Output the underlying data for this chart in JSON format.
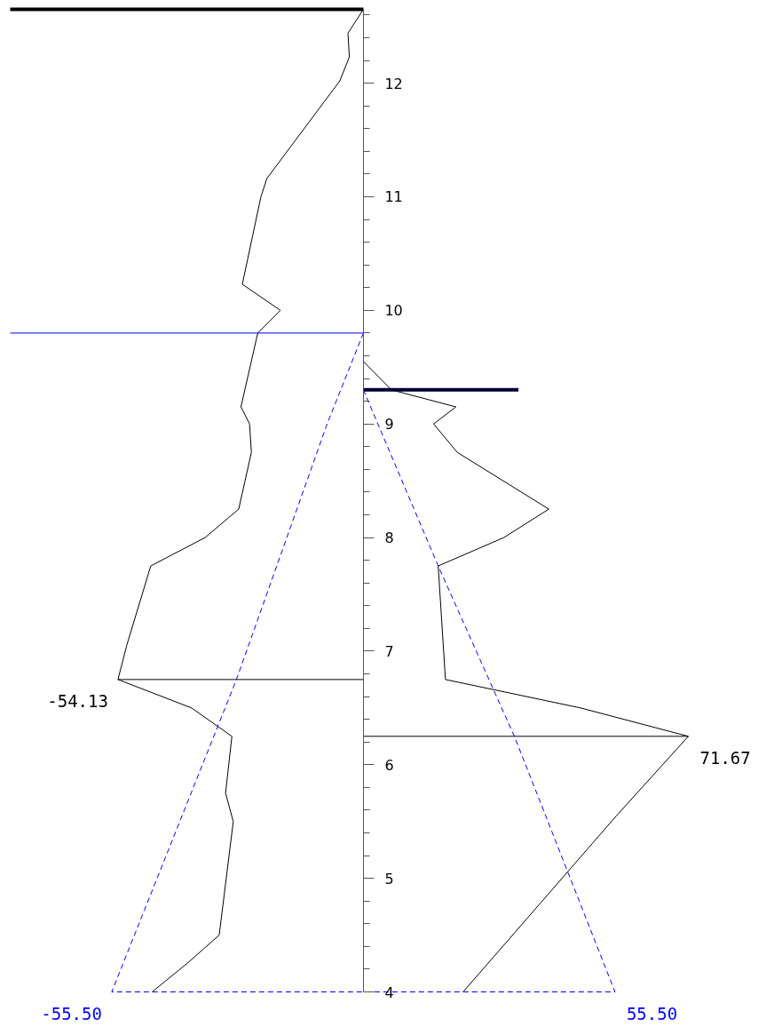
{
  "chart_data": {
    "type": "line",
    "orientation": "horizontal",
    "tick_labels": "y",
    "ylim": [
      4,
      12.65
    ],
    "yticks": [
      4,
      {
        "value": 4.2,
        "label": null
      },
      {
        "value": 4.4,
        "label": null
      },
      {
        "value": 4.6,
        "label": null
      },
      {
        "value": 4.8,
        "label": null
      },
      5,
      {
        "value": 5.2,
        "label": null
      },
      {
        "value": 5.4,
        "label": null
      },
      {
        "value": 5.6,
        "label": null
      },
      {
        "value": 5.8,
        "label": null
      },
      6,
      {
        "value": 6.2,
        "label": null
      },
      {
        "value": 6.4,
        "label": null
      },
      {
        "value": 6.6,
        "label": null
      },
      {
        "value": 6.8,
        "label": null
      },
      7,
      {
        "value": 7.2,
        "label": null
      },
      {
        "value": 7.4,
        "label": null
      },
      {
        "value": 7.6,
        "label": null
      },
      {
        "value": 7.8,
        "label": null
      },
      8,
      {
        "value": 8.2,
        "label": null
      },
      {
        "value": 8.4,
        "label": null
      },
      {
        "value": 8.6,
        "label": null
      },
      {
        "value": 8.8,
        "label": null
      },
      9,
      {
        "value": 9.2,
        "label": null
      },
      {
        "value": 9.4,
        "label": null
      },
      {
        "value": 9.6,
        "label": null
      },
      {
        "value": 9.8,
        "label": null
      },
      10,
      {
        "value": 10.2,
        "label": null
      },
      {
        "value": 10.4,
        "label": null
      },
      {
        "value": 10.6,
        "label": null
      },
      {
        "value": 10.8,
        "label": null
      },
      11,
      {
        "value": 11.2,
        "label": null
      },
      {
        "value": 11.4,
        "label": null
      },
      {
        "value": 11.6,
        "label": null
      },
      {
        "value": 11.8,
        "label": null
      },
      12,
      {
        "value": 12.2,
        "label": null
      },
      {
        "value": 12.4,
        "label": null
      },
      {
        "value": 12.6,
        "label": null
      }
    ],
    "series": [
      {
        "color": "#000000",
        "x": [
          12.65,
          12.44,
          12.23,
          12.02,
          11.16,
          11.0,
          10.23,
          10.0,
          9.8,
          9.15,
          9.0,
          8.75,
          8.25,
          8.0,
          7.75,
          7.05,
          6.75,
          6.5,
          6.25,
          5.75,
          5.5,
          4.5,
          4.25,
          4.0
        ],
        "values": [
          0,
          -3.4,
          -3.1,
          -5.2,
          -21.3,
          -22.6,
          -26.7,
          -18.3,
          -23.3,
          -27.0,
          -25.1,
          -24.7,
          -27.5,
          -34.9,
          -46.9,
          -52.2,
          -54.13,
          -37.9,
          -29.0,
          -30.4,
          -28.7,
          -31.8,
          -38.9,
          -46.6
        ],
        "value_labels": [
          null,
          null,
          null,
          null,
          null,
          null,
          null,
          null,
          null,
          null,
          null,
          null,
          null,
          null,
          null,
          null,
          "-54.13",
          null,
          null,
          null,
          null,
          null,
          null,
          null
        ]
      },
      {
        "color": "#000000",
        "x": [
          9.55,
          9.3,
          9.15,
          9.0,
          8.75,
          8.25,
          8.0,
          7.75,
          6.75,
          6.5,
          6.25,
          5.55,
          4.0
        ],
        "values": [
          0,
          6.2,
          20.4,
          15.5,
          20.7,
          40.9,
          31.0,
          16.5,
          18.1,
          47.9,
          71.67,
          55.8,
          22.0
        ],
        "value_labels": [
          null,
          null,
          null,
          null,
          null,
          null,
          null,
          null,
          null,
          null,
          "71.67",
          null,
          null
        ]
      },
      {
        "color": "#0000ff",
        "line_style": "dashed",
        "x": [
          9.8,
          9.0,
          6.75,
          4.0,
          4.0,
          6.25,
          7.75,
          9.3
        ],
        "values": [
          0,
          -8.0,
          -28.0,
          -55.5,
          55.5,
          33.3,
          16.5,
          0
        ],
        "value_labels": [
          null,
          null,
          null,
          "-55.50",
          "55.50",
          null,
          null,
          null
        ]
      },
      {
        "color": "#000000",
        "x": [
          6.75,
          6.75
        ],
        "values": [
          -54.13,
          0
        ]
      },
      {
        "color": "#000000",
        "x": [
          6.25,
          6.25
        ],
        "values": [
          0,
          71.67
        ]
      },
      {
        "color": "#000000",
        "x": [
          12.65,
          12.65
        ],
        "values": [
          -77.9,
          0
        ]
      },
      {
        "color": "#0000ff",
        "x": [
          9.8,
          9.8
        ],
        "values": [
          -77.9,
          0
        ]
      },
      {
        "color": "#000033",
        "x": [
          9.3,
          9.3
        ],
        "values": [
          0,
          34.2
        ]
      }
    ]
  }
}
